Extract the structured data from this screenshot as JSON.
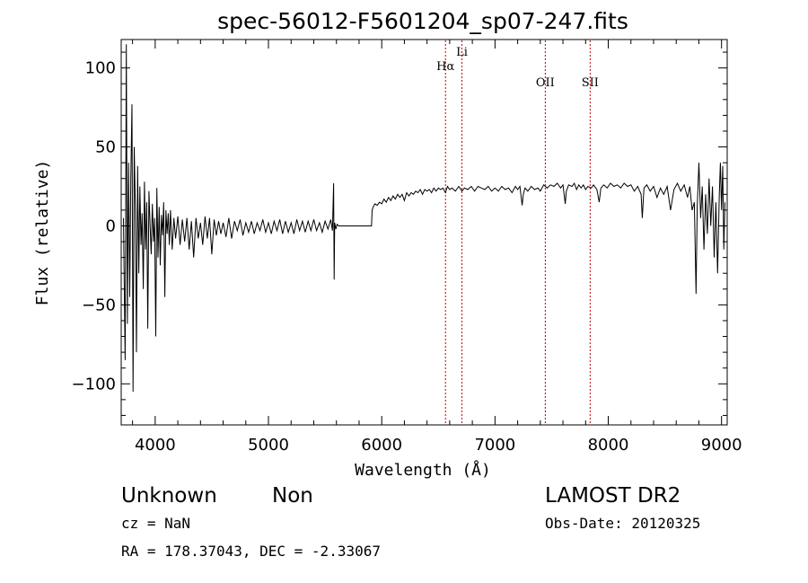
{
  "chart_data": {
    "type": "line",
    "title": "spec-56012-F5601204_sp07-247.fits",
    "xlabel": "Wavelength (Å)",
    "ylabel": "Flux (relative)",
    "xlim": [
      3700,
      9050
    ],
    "ylim": [
      -126,
      118
    ],
    "x_ticks": [
      4000,
      5000,
      6000,
      7000,
      8000,
      9000
    ],
    "y_ticks": [
      -100,
      -50,
      0,
      50,
      100
    ],
    "grid": false,
    "series": [
      {
        "color": "#000000",
        "points": [
          [
            3720,
            5
          ],
          [
            3735,
            -85
          ],
          [
            3745,
            115
          ],
          [
            3755,
            -62
          ],
          [
            3765,
            40
          ],
          [
            3775,
            -45
          ],
          [
            3785,
            30
          ],
          [
            3795,
            77
          ],
          [
            3805,
            -105
          ],
          [
            3815,
            50
          ],
          [
            3825,
            10
          ],
          [
            3835,
            -80
          ],
          [
            3845,
            38
          ],
          [
            3855,
            -30
          ],
          [
            3865,
            25
          ],
          [
            3875,
            -12
          ],
          [
            3885,
            8
          ],
          [
            3895,
            -40
          ],
          [
            3905,
            28
          ],
          [
            3915,
            -15
          ],
          [
            3925,
            15
          ],
          [
            3935,
            -65
          ],
          [
            3945,
            22
          ],
          [
            3955,
            0
          ],
          [
            3965,
            -18
          ],
          [
            3975,
            14
          ],
          [
            3985,
            -10
          ],
          [
            3995,
            5
          ],
          [
            4005,
            -70
          ],
          [
            4015,
            24
          ],
          [
            4025,
            -20
          ],
          [
            4035,
            12
          ],
          [
            4045,
            -25
          ],
          [
            4055,
            7
          ],
          [
            4065,
            -6
          ],
          [
            4075,
            15
          ],
          [
            4085,
            -45
          ],
          [
            4095,
            10
          ],
          [
            4105,
            -5
          ],
          [
            4115,
            8
          ],
          [
            4125,
            -12
          ],
          [
            4135,
            10
          ],
          [
            4150,
            -15
          ],
          [
            4165,
            5
          ],
          [
            4180,
            -8
          ],
          [
            4200,
            6
          ],
          [
            4220,
            -12
          ],
          [
            4240,
            4
          ],
          [
            4260,
            -10
          ],
          [
            4280,
            5
          ],
          [
            4300,
            -15
          ],
          [
            4320,
            3
          ],
          [
            4340,
            -20
          ],
          [
            4360,
            5
          ],
          [
            4380,
            -8
          ],
          [
            4400,
            2
          ],
          [
            4420,
            -12
          ],
          [
            4440,
            6
          ],
          [
            4460,
            -8
          ],
          [
            4480,
            5
          ],
          [
            4500,
            -18
          ],
          [
            4520,
            4
          ],
          [
            4540,
            -6
          ],
          [
            4560,
            3
          ],
          [
            4580,
            -5
          ],
          [
            4600,
            2
          ],
          [
            4625,
            -7
          ],
          [
            4650,
            5
          ],
          [
            4675,
            -8
          ],
          [
            4700,
            3
          ],
          [
            4725,
            -3
          ],
          [
            4750,
            4
          ],
          [
            4775,
            -6
          ],
          [
            4800,
            2
          ],
          [
            4825,
            -4
          ],
          [
            4850,
            3
          ],
          [
            4875,
            -5
          ],
          [
            4900,
            2
          ],
          [
            4925,
            -3
          ],
          [
            4950,
            4
          ],
          [
            4975,
            -4
          ],
          [
            5000,
            2
          ],
          [
            5025,
            -5
          ],
          [
            5050,
            3
          ],
          [
            5075,
            -3
          ],
          [
            5100,
            4
          ],
          [
            5125,
            -5
          ],
          [
            5150,
            3
          ],
          [
            5175,
            -4
          ],
          [
            5200,
            2
          ],
          [
            5225,
            -5
          ],
          [
            5250,
            4
          ],
          [
            5275,
            -3
          ],
          [
            5300,
            3
          ],
          [
            5325,
            -4
          ],
          [
            5350,
            3
          ],
          [
            5375,
            -3
          ],
          [
            5400,
            4
          ],
          [
            5425,
            -3
          ],
          [
            5450,
            2
          ],
          [
            5475,
            -4
          ],
          [
            5500,
            3
          ],
          [
            5525,
            -2
          ],
          [
            5550,
            4
          ],
          [
            5565,
            -3
          ],
          [
            5575,
            27
          ],
          [
            5580,
            -34
          ],
          [
            5585,
            2
          ],
          [
            5595,
            -2
          ],
          [
            5605,
            1
          ],
          [
            5620,
            0
          ],
          [
            5900,
            0
          ],
          [
            5910,
            0
          ],
          [
            5915,
            10
          ],
          [
            5925,
            12
          ],
          [
            5940,
            14
          ],
          [
            5960,
            13
          ],
          [
            5980,
            15
          ],
          [
            6000,
            14
          ],
          [
            6020,
            17
          ],
          [
            6040,
            15
          ],
          [
            6060,
            18
          ],
          [
            6080,
            16
          ],
          [
            6100,
            19
          ],
          [
            6120,
            17
          ],
          [
            6140,
            20
          ],
          [
            6160,
            18
          ],
          [
            6180,
            20
          ],
          [
            6200,
            16
          ],
          [
            6220,
            21
          ],
          [
            6240,
            19
          ],
          [
            6260,
            21
          ],
          [
            6280,
            20
          ],
          [
            6300,
            22
          ],
          [
            6320,
            21
          ],
          [
            6340,
            23
          ],
          [
            6360,
            20
          ],
          [
            6380,
            23
          ],
          [
            6400,
            22
          ],
          [
            6420,
            23
          ],
          [
            6440,
            21
          ],
          [
            6460,
            24
          ],
          [
            6480,
            22
          ],
          [
            6500,
            24
          ],
          [
            6520,
            23
          ],
          [
            6540,
            24
          ],
          [
            6563,
            21
          ],
          [
            6580,
            25
          ],
          [
            6600,
            23
          ],
          [
            6620,
            24
          ],
          [
            6650,
            22
          ],
          [
            6680,
            25
          ],
          [
            6708,
            22
          ],
          [
            6730,
            24
          ],
          [
            6760,
            23
          ],
          [
            6790,
            25
          ],
          [
            6820,
            22
          ],
          [
            6850,
            25
          ],
          [
            6880,
            24
          ],
          [
            6910,
            23
          ],
          [
            6940,
            25
          ],
          [
            6970,
            22
          ],
          [
            7000,
            24
          ],
          [
            7030,
            22
          ],
          [
            7060,
            25
          ],
          [
            7090,
            23
          ],
          [
            7120,
            24
          ],
          [
            7150,
            21
          ],
          [
            7180,
            25
          ],
          [
            7200,
            23
          ],
          [
            7220,
            25
          ],
          [
            7240,
            13
          ],
          [
            7250,
            20
          ],
          [
            7265,
            24
          ],
          [
            7290,
            22
          ],
          [
            7320,
            25
          ],
          [
            7350,
            23
          ],
          [
            7380,
            24
          ],
          [
            7400,
            22
          ],
          [
            7430,
            26
          ],
          [
            7460,
            24
          ],
          [
            7490,
            26
          ],
          [
            7520,
            25
          ],
          [
            7550,
            27
          ],
          [
            7580,
            24
          ],
          [
            7600,
            26
          ],
          [
            7620,
            14
          ],
          [
            7630,
            22
          ],
          [
            7650,
            26
          ],
          [
            7680,
            25
          ],
          [
            7700,
            27
          ],
          [
            7720,
            23
          ],
          [
            7740,
            26
          ],
          [
            7760,
            24
          ],
          [
            7780,
            26
          ],
          [
            7800,
            23
          ],
          [
            7820,
            25
          ],
          [
            7850,
            24
          ],
          [
            7870,
            26
          ],
          [
            7900,
            23
          ],
          [
            7920,
            15
          ],
          [
            7935,
            24
          ],
          [
            7960,
            26
          ],
          [
            7990,
            24
          ],
          [
            8020,
            27
          ],
          [
            8050,
            25
          ],
          [
            8080,
            26
          ],
          [
            8110,
            24
          ],
          [
            8140,
            27
          ],
          [
            8170,
            25
          ],
          [
            8200,
            26
          ],
          [
            8230,
            22
          ],
          [
            8260,
            25
          ],
          [
            8290,
            20
          ],
          [
            8300,
            5
          ],
          [
            8315,
            24
          ],
          [
            8340,
            26
          ],
          [
            8370,
            22
          ],
          [
            8400,
            25
          ],
          [
            8430,
            18
          ],
          [
            8460,
            24
          ],
          [
            8490,
            20
          ],
          [
            8520,
            25
          ],
          [
            8550,
            10
          ],
          [
            8580,
            23
          ],
          [
            8610,
            27
          ],
          [
            8640,
            22
          ],
          [
            8670,
            26
          ],
          [
            8700,
            18
          ],
          [
            8720,
            25
          ],
          [
            8740,
            10
          ],
          [
            8760,
            15
          ],
          [
            8775,
            -43
          ],
          [
            8785,
            12
          ],
          [
            8800,
            40
          ],
          [
            8815,
            5
          ],
          [
            8830,
            25
          ],
          [
            8845,
            -15
          ],
          [
            8860,
            20
          ],
          [
            8875,
            -5
          ],
          [
            8890,
            30
          ],
          [
            8905,
            0
          ],
          [
            8920,
            25
          ],
          [
            8935,
            -20
          ],
          [
            8950,
            15
          ],
          [
            8965,
            -30
          ],
          [
            8980,
            20
          ],
          [
            8990,
            40
          ],
          [
            9000,
            10
          ],
          [
            9010,
            38
          ],
          [
            9020,
            -15
          ],
          [
            9030,
            15
          ]
        ]
      }
    ],
    "lines": [
      {
        "label": "Hα",
        "x": 6563,
        "color": "#c00000"
      },
      {
        "label": "Li",
        "x": 6708,
        "color": "#c00000"
      },
      {
        "label": "OII",
        "x": 7444,
        "color": "#c00000"
      },
      {
        "label": "SII",
        "x": 7840,
        "color": "#c00000"
      }
    ]
  },
  "info": {
    "class": "Unknown",
    "subclass": "Non",
    "survey": "LAMOST DR2",
    "cz": "cz = NaN",
    "obs_date": "Obs-Date: 20120325",
    "coords": "RA = 178.37043, DEC =  -2.33067"
  }
}
